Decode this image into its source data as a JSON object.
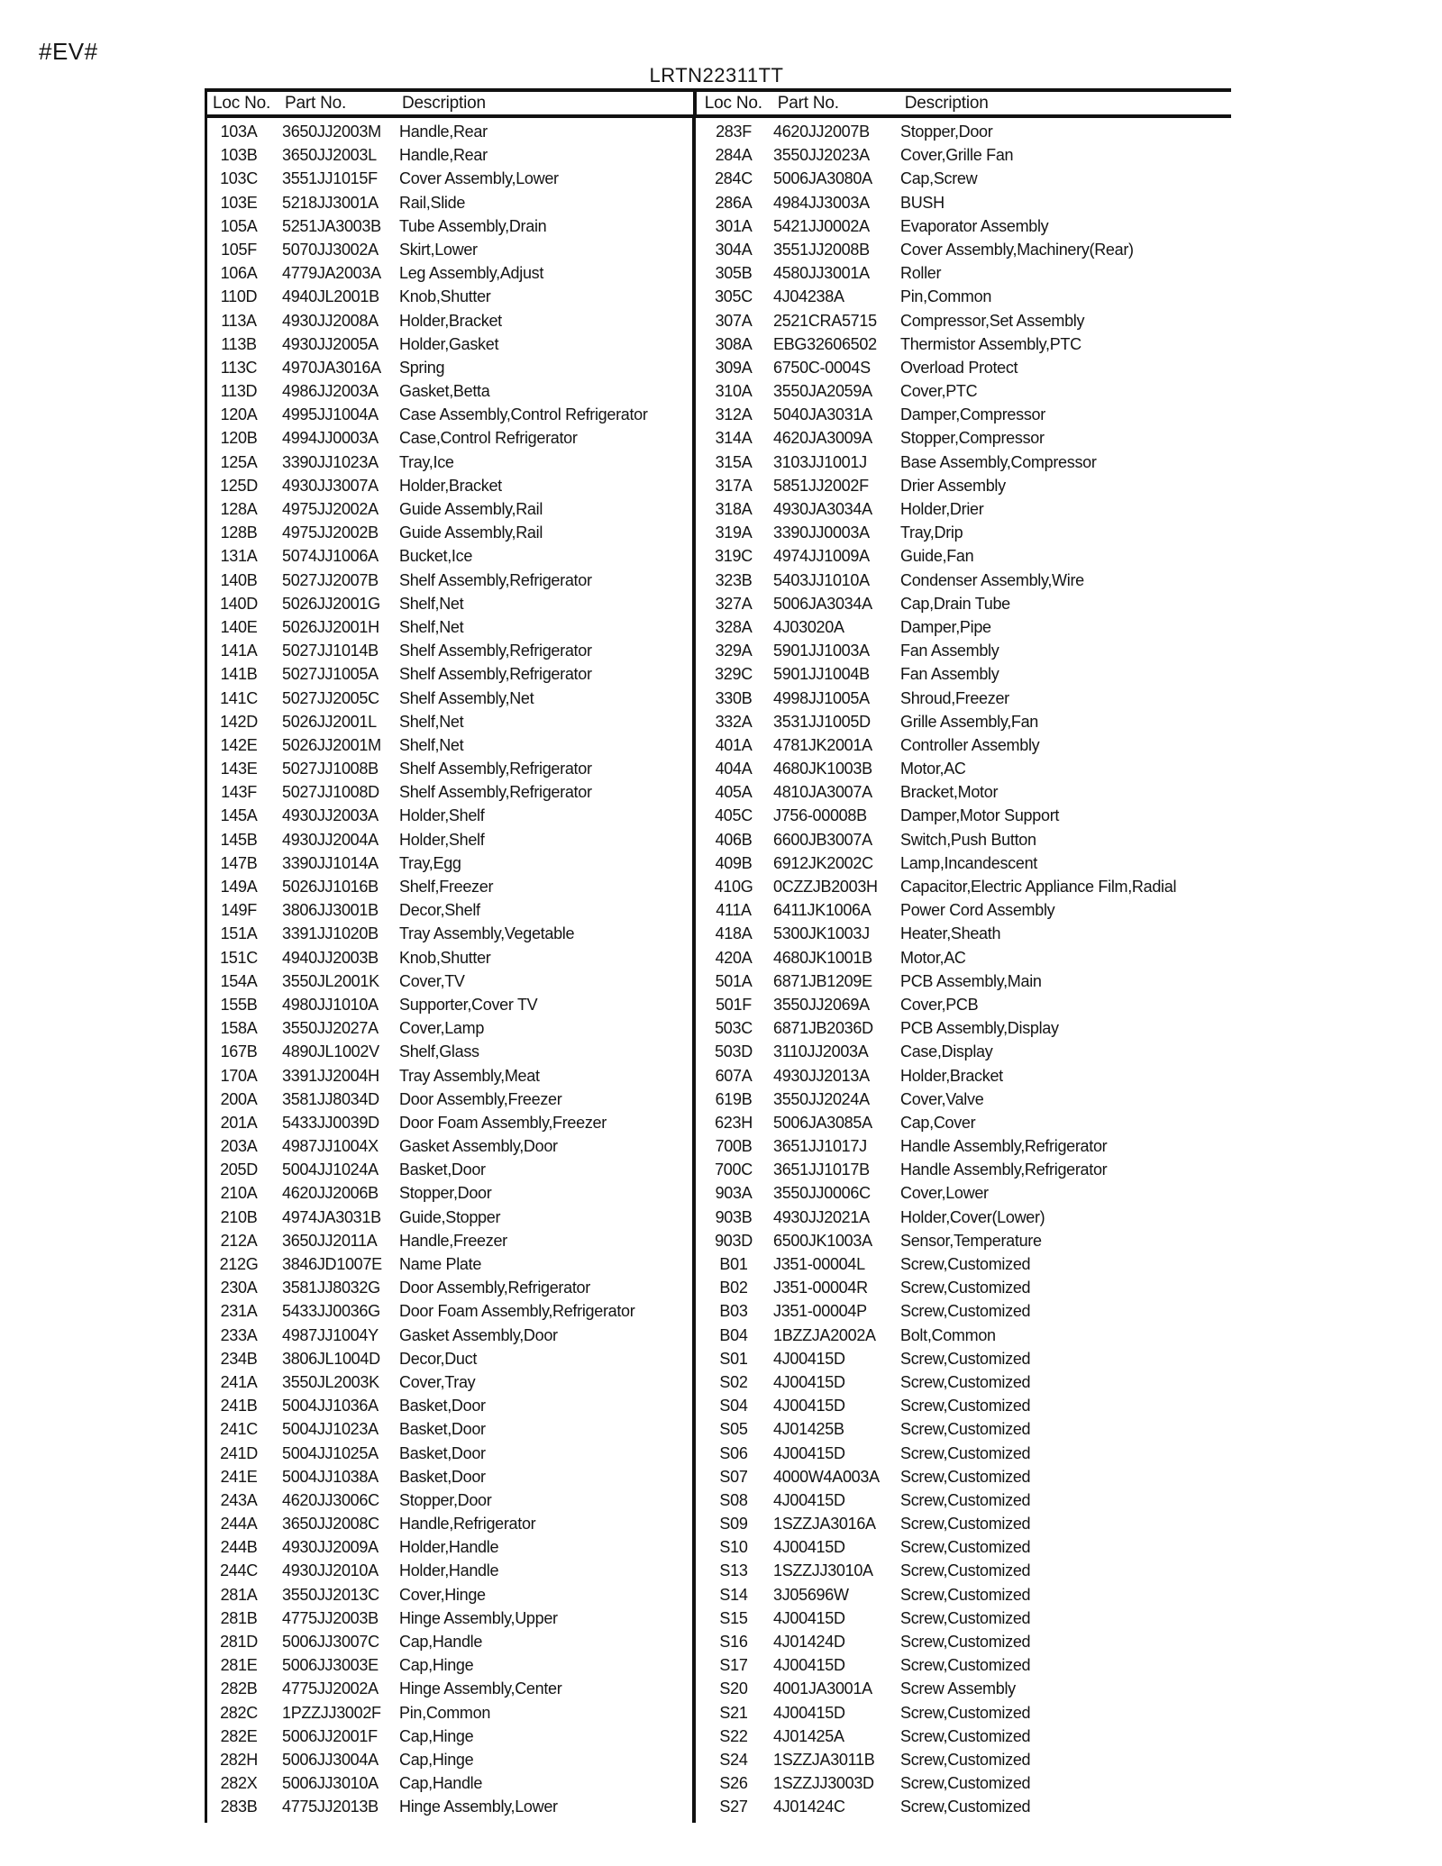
{
  "page": {
    "corner_mark": "#EV#",
    "title": "LRTN22311TT"
  },
  "colors": {
    "ink": "#141414",
    "paper": "#ffffff"
  },
  "table": {
    "left": {
      "headers": {
        "loc": "Loc No.",
        "part": "Part No.",
        "desc": "Description"
      },
      "rows": [
        [
          "103A",
          "3650JJ2003M",
          "Handle,Rear"
        ],
        [
          "103B",
          "3650JJ2003L",
          "Handle,Rear"
        ],
        [
          "103C",
          "3551JJ1015F",
          "Cover Assembly,Lower"
        ],
        [
          "103E",
          "5218JJ3001A",
          "Rail,Slide"
        ],
        [
          "105A",
          "5251JA3003B",
          "Tube Assembly,Drain"
        ],
        [
          "105F",
          "5070JJ3002A",
          "Skirt,Lower"
        ],
        [
          "106A",
          "4779JA2003A",
          "Leg Assembly,Adjust"
        ],
        [
          "110D",
          "4940JL2001B",
          "Knob,Shutter"
        ],
        [
          "113A",
          "4930JJ2008A",
          "Holder,Bracket"
        ],
        [
          "113B",
          "4930JJ2005A",
          "Holder,Gasket"
        ],
        [
          "113C",
          "4970JA3016A",
          "Spring"
        ],
        [
          "113D",
          "4986JJ2003A",
          "Gasket,Betta"
        ],
        [
          "120A",
          "4995JJ1004A",
          "Case Assembly,Control Refrigerator"
        ],
        [
          "120B",
          "4994JJ0003A",
          "Case,Control Refrigerator"
        ],
        [
          "125A",
          "3390JJ1023A",
          "Tray,Ice"
        ],
        [
          "125D",
          "4930JJ3007A",
          "Holder,Bracket"
        ],
        [
          "128A",
          "4975JJ2002A",
          "Guide Assembly,Rail"
        ],
        [
          "128B",
          "4975JJ2002B",
          "Guide Assembly,Rail"
        ],
        [
          "131A",
          "5074JJ1006A",
          "Bucket,Ice"
        ],
        [
          "140B",
          "5027JJ2007B",
          "Shelf Assembly,Refrigerator"
        ],
        [
          "140D",
          "5026JJ2001G",
          "Shelf,Net"
        ],
        [
          "140E",
          "5026JJ2001H",
          "Shelf,Net"
        ],
        [
          "141A",
          "5027JJ1014B",
          "Shelf Assembly,Refrigerator"
        ],
        [
          "141B",
          "5027JJ1005A",
          "Shelf Assembly,Refrigerator"
        ],
        [
          "141C",
          "5027JJ2005C",
          "Shelf Assembly,Net"
        ],
        [
          "142D",
          "5026JJ2001L",
          "Shelf,Net"
        ],
        [
          "142E",
          "5026JJ2001M",
          "Shelf,Net"
        ],
        [
          "143E",
          "5027JJ1008B",
          "Shelf Assembly,Refrigerator"
        ],
        [
          "143F",
          "5027JJ1008D",
          "Shelf Assembly,Refrigerator"
        ],
        [
          "145A",
          "4930JJ2003A",
          "Holder,Shelf"
        ],
        [
          "145B",
          "4930JJ2004A",
          "Holder,Shelf"
        ],
        [
          "147B",
          "3390JJ1014A",
          "Tray,Egg"
        ],
        [
          "149A",
          "5026JJ1016B",
          "Shelf,Freezer"
        ],
        [
          "149F",
          "3806JJ3001B",
          "Decor,Shelf"
        ],
        [
          "151A",
          "3391JJ1020B",
          "Tray Assembly,Vegetable"
        ],
        [
          "151C",
          "4940JJ2003B",
          "Knob,Shutter"
        ],
        [
          "154A",
          "3550JL2001K",
          "Cover,TV"
        ],
        [
          "155B",
          "4980JJ1010A",
          "Supporter,Cover TV"
        ],
        [
          "158A",
          "3550JJ2027A",
          "Cover,Lamp"
        ],
        [
          "167B",
          "4890JL1002V",
          "Shelf,Glass"
        ],
        [
          "170A",
          "3391JJ2004H",
          "Tray Assembly,Meat"
        ],
        [
          "200A",
          "3581JJ8034D",
          "Door Assembly,Freezer"
        ],
        [
          "201A",
          "5433JJ0039D",
          "Door Foam Assembly,Freezer"
        ],
        [
          "203A",
          "4987JJ1004X",
          "Gasket Assembly,Door"
        ],
        [
          "205D",
          "5004JJ1024A",
          "Basket,Door"
        ],
        [
          "210A",
          "4620JJ2006B",
          "Stopper,Door"
        ],
        [
          "210B",
          "4974JA3031B",
          "Guide,Stopper"
        ],
        [
          "212A",
          "3650JJ2011A",
          "Handle,Freezer"
        ],
        [
          "212G",
          "3846JD1007E",
          "Name Plate"
        ],
        [
          "230A",
          "3581JJ8032G",
          "Door Assembly,Refrigerator"
        ],
        [
          "231A",
          "5433JJ0036G",
          "Door Foam Assembly,Refrigerator"
        ],
        [
          "233A",
          "4987JJ1004Y",
          "Gasket Assembly,Door"
        ],
        [
          "234B",
          "3806JL1004D",
          "Decor,Duct"
        ],
        [
          "241A",
          "3550JL2003K",
          "Cover,Tray"
        ],
        [
          "241B",
          "5004JJ1036A",
          "Basket,Door"
        ],
        [
          "241C",
          "5004JJ1023A",
          "Basket,Door"
        ],
        [
          "241D",
          "5004JJ1025A",
          "Basket,Door"
        ],
        [
          "241E",
          "5004JJ1038A",
          "Basket,Door"
        ],
        [
          "243A",
          "4620JJ3006C",
          "Stopper,Door"
        ],
        [
          "244A",
          "3650JJ2008C",
          "Handle,Refrigerator"
        ],
        [
          "244B",
          "4930JJ2009A",
          "Holder,Handle"
        ],
        [
          "244C",
          "4930JJ2010A",
          "Holder,Handle"
        ],
        [
          "281A",
          "3550JJ2013C",
          "Cover,Hinge"
        ],
        [
          "281B",
          "4775JJ2003B",
          "Hinge Assembly,Upper"
        ],
        [
          "281D",
          "5006JJ3007C",
          "Cap,Handle"
        ],
        [
          "281E",
          "5006JJ3003E",
          "Cap,Hinge"
        ],
        [
          "282B",
          "4775JJ2002A",
          "Hinge Assembly,Center"
        ],
        [
          "282C",
          "1PZZJJ3002F",
          "Pin,Common"
        ],
        [
          "282E",
          "5006JJ2001F",
          "Cap,Hinge"
        ],
        [
          "282H",
          "5006JJ3004A",
          "Cap,Hinge"
        ],
        [
          "282X",
          "5006JJ3010A",
          "Cap,Handle"
        ],
        [
          "283B",
          "4775JJ2013B",
          "Hinge Assembly,Lower"
        ]
      ]
    },
    "right": {
      "headers": {
        "loc": "Loc No.",
        "part": "Part No.",
        "desc": "Description"
      },
      "rows": [
        [
          "283F",
          "4620JJ2007B",
          "Stopper,Door"
        ],
        [
          "284A",
          "3550JJ2023A",
          "Cover,Grille Fan"
        ],
        [
          "284C",
          "5006JA3080A",
          "Cap,Screw"
        ],
        [
          "286A",
          "4984JJ3003A",
          "BUSH"
        ],
        [
          "301A",
          "5421JJ0002A",
          "Evaporator Assembly"
        ],
        [
          "304A",
          "3551JJ2008B",
          "Cover Assembly,Machinery(Rear)"
        ],
        [
          "305B",
          "4580JJ3001A",
          "Roller"
        ],
        [
          "305C",
          "4J04238A",
          "Pin,Common"
        ],
        [
          "307A",
          "2521CRA5715",
          "Compressor,Set Assembly"
        ],
        [
          "308A",
          "EBG32606502",
          "Thermistor Assembly,PTC"
        ],
        [
          "309A",
          "6750C-0004S",
          "Overload Protect"
        ],
        [
          "310A",
          "3550JA2059A",
          "Cover,PTC"
        ],
        [
          "312A",
          "5040JA3031A",
          "Damper,Compressor"
        ],
        [
          "314A",
          "4620JA3009A",
          "Stopper,Compressor"
        ],
        [
          "315A",
          "3103JJ1001J",
          "Base Assembly,Compressor"
        ],
        [
          "317A",
          "5851JJ2002F",
          "Drier Assembly"
        ],
        [
          "318A",
          "4930JA3034A",
          "Holder,Drier"
        ],
        [
          "319A",
          "3390JJ0003A",
          "Tray,Drip"
        ],
        [
          "319C",
          "4974JJ1009A",
          "Guide,Fan"
        ],
        [
          "323B",
          "5403JJ1010A",
          "Condenser Assembly,Wire"
        ],
        [
          "327A",
          "5006JA3034A",
          "Cap,Drain Tube"
        ],
        [
          "328A",
          "4J03020A",
          "Damper,Pipe"
        ],
        [
          "329A",
          "5901JJ1003A",
          "Fan Assembly"
        ],
        [
          "329C",
          "5901JJ1004B",
          "Fan Assembly"
        ],
        [
          "330B",
          "4998JJ1005A",
          "Shroud,Freezer"
        ],
        [
          "332A",
          "3531JJ1005D",
          "Grille Assembly,Fan"
        ],
        [
          "401A",
          "4781JK2001A",
          "Controller Assembly"
        ],
        [
          "404A",
          "4680JK1003B",
          "Motor,AC"
        ],
        [
          "405A",
          "4810JA3007A",
          "Bracket,Motor"
        ],
        [
          "405C",
          "J756-00008B",
          "Damper,Motor Support"
        ],
        [
          "406B",
          "6600JB3007A",
          "Switch,Push Button"
        ],
        [
          "409B",
          "6912JK2002C",
          "Lamp,Incandescent"
        ],
        [
          "410G",
          "0CZZJB2003H",
          "Capacitor,Electric Appliance Film,Radial"
        ],
        [
          "411A",
          "6411JK1006A",
          "Power Cord Assembly"
        ],
        [
          "418A",
          "5300JK1003J",
          "Heater,Sheath"
        ],
        [
          "420A",
          "4680JK1001B",
          "Motor,AC"
        ],
        [
          "501A",
          "6871JB1209E",
          "PCB Assembly,Main"
        ],
        [
          "501F",
          "3550JJ2069A",
          "Cover,PCB"
        ],
        [
          "503C",
          "6871JB2036D",
          "PCB Assembly,Display"
        ],
        [
          "503D",
          "3110JJ2003A",
          "Case,Display"
        ],
        [
          "607A",
          "4930JJ2013A",
          "Holder,Bracket"
        ],
        [
          "619B",
          "3550JJ2024A",
          "Cover,Valve"
        ],
        [
          "623H",
          "5006JA3085A",
          "Cap,Cover"
        ],
        [
          "700B",
          "3651JJ1017J",
          "Handle Assembly,Refrigerator"
        ],
        [
          "700C",
          "3651JJ1017B",
          "Handle Assembly,Refrigerator"
        ],
        [
          "903A",
          "3550JJ0006C",
          "Cover,Lower"
        ],
        [
          "903B",
          "4930JJ2021A",
          "Holder,Cover(Lower)"
        ],
        [
          "903D",
          "6500JK1003A",
          "Sensor,Temperature"
        ],
        [
          "B01",
          "J351-00004L",
          "Screw,Customized"
        ],
        [
          "B02",
          "J351-00004R",
          "Screw,Customized"
        ],
        [
          "B03",
          "J351-00004P",
          "Screw,Customized"
        ],
        [
          "B04",
          "1BZZJA2002A",
          "Bolt,Common"
        ],
        [
          "S01",
          "4J00415D",
          "Screw,Customized"
        ],
        [
          "S02",
          "4J00415D",
          "Screw,Customized"
        ],
        [
          "S04",
          "4J00415D",
          "Screw,Customized"
        ],
        [
          "S05",
          "4J01425B",
          "Screw,Customized"
        ],
        [
          "S06",
          "4J00415D",
          "Screw,Customized"
        ],
        [
          "S07",
          "4000W4A003A",
          "Screw,Customized"
        ],
        [
          "S08",
          "4J00415D",
          "Screw,Customized"
        ],
        [
          "S09",
          "1SZZJA3016A",
          "Screw,Customized"
        ],
        [
          "S10",
          "4J00415D",
          "Screw,Customized"
        ],
        [
          "S13",
          "1SZZJJ3010A",
          "Screw,Customized"
        ],
        [
          "S14",
          "3J05696W",
          "Screw,Customized"
        ],
        [
          "S15",
          "4J00415D",
          "Screw,Customized"
        ],
        [
          "S16",
          "4J01424D",
          "Screw,Customized"
        ],
        [
          "S17",
          "4J00415D",
          "Screw,Customized"
        ],
        [
          "S20",
          "4001JA3001A",
          "Screw Assembly"
        ],
        [
          "S21",
          "4J00415D",
          "Screw,Customized"
        ],
        [
          "S22",
          "4J01425A",
          "Screw,Customized"
        ],
        [
          "S24",
          "1SZZJA3011B",
          "Screw,Customized"
        ],
        [
          "S26",
          "1SZZJJ3003D",
          "Screw,Customized"
        ],
        [
          "S27",
          "4J01424C",
          "Screw,Customized"
        ]
      ]
    }
  }
}
